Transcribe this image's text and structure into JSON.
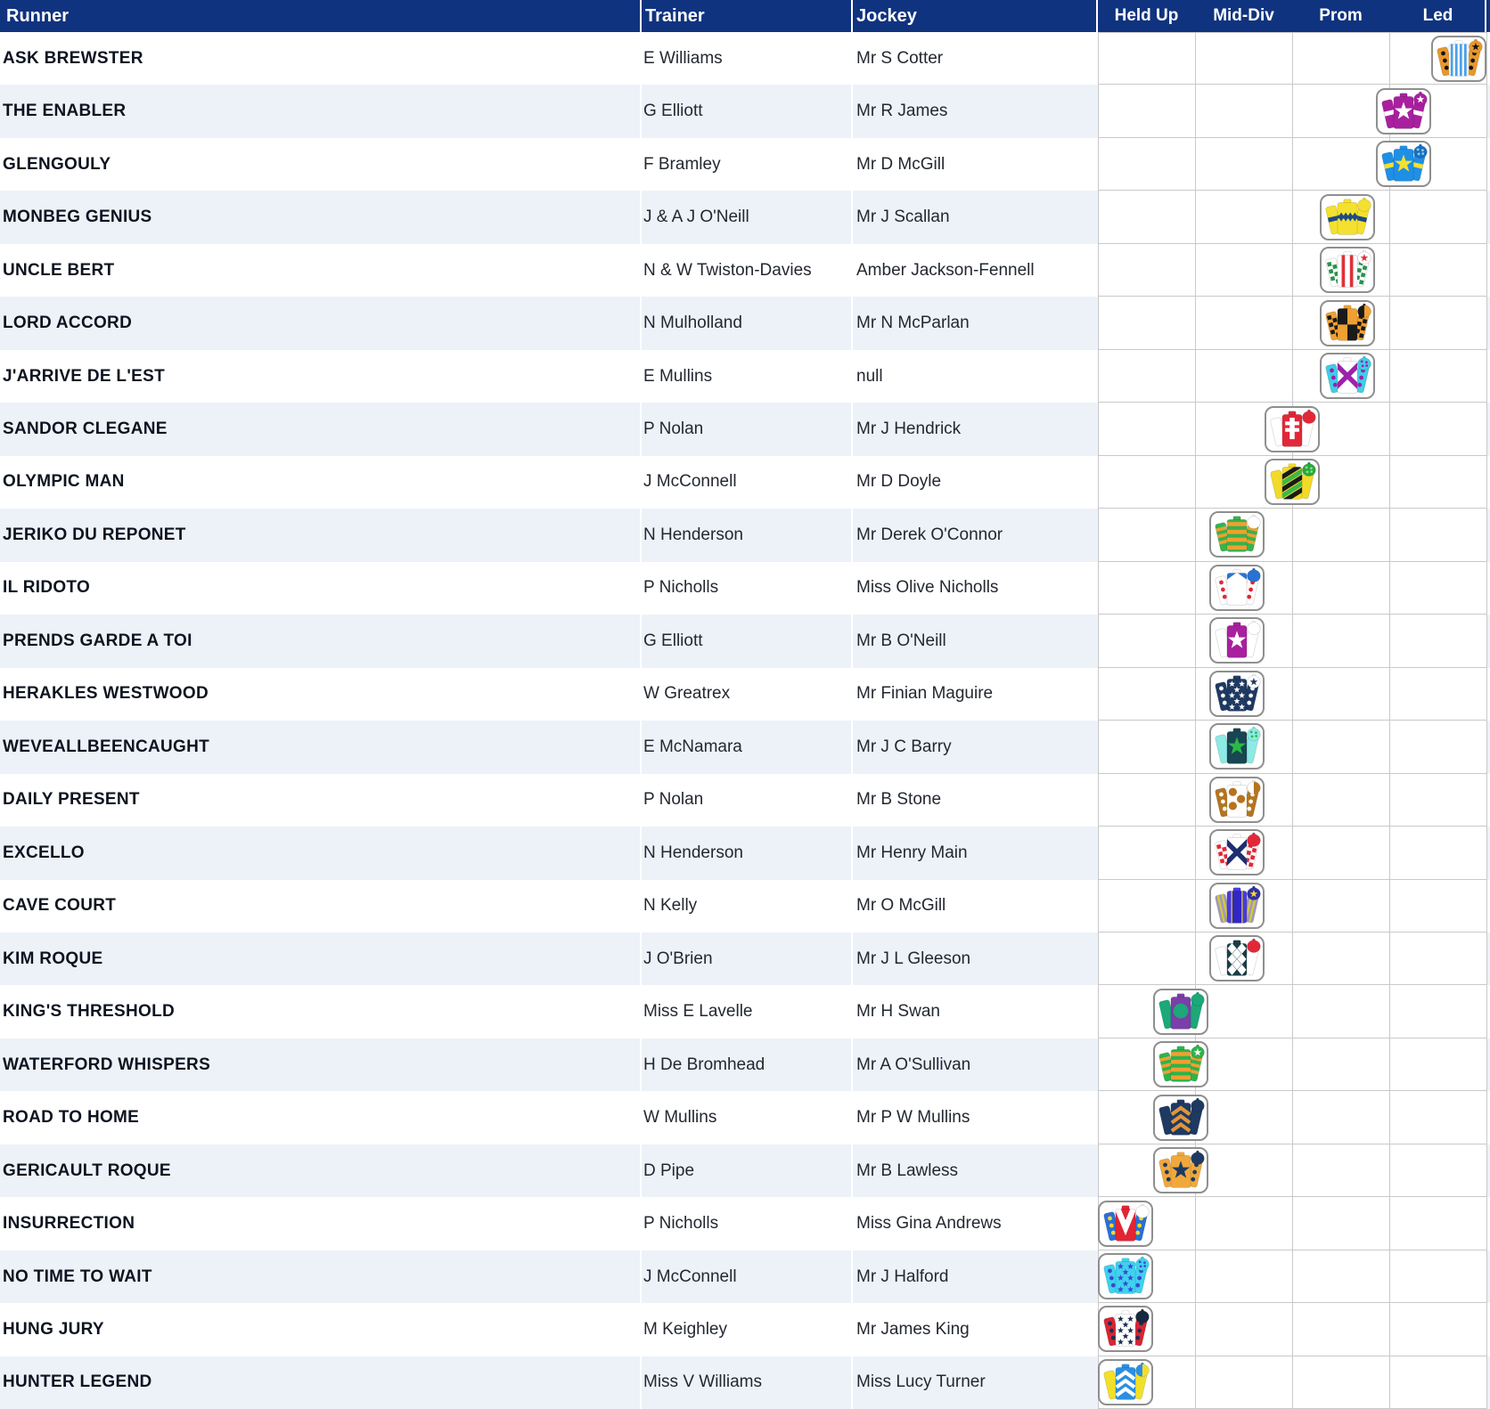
{
  "colors": {
    "header_bg": "#10337f",
    "header_text": "#ffffff",
    "row_stripe": "#edf2f9",
    "row_plain": "#ffffff",
    "grid_line": "#c9c9c9",
    "runner_text": "#0d1420",
    "cell_text": "#232830",
    "silk_box_border": "#8f8f8f"
  },
  "table": {
    "columns": {
      "runner": "Runner",
      "trainer": "Trainer",
      "jockey": "Jockey"
    },
    "run_style_columns": [
      "Held Up",
      "Mid-Div",
      "Prom",
      "Led"
    ],
    "run_style_scale_points": 7,
    "rows": [
      {
        "runner": "ASK BREWSTER",
        "trainer": "E Williams",
        "jockey": "Mr S Cotter",
        "run_style": 7,
        "silk": {
          "body": {
            "color": "#ffffff",
            "pattern": "stripes",
            "pattern_color": "#4ba1e8"
          },
          "sleeves": {
            "color": "#e8982a",
            "pattern": "spots",
            "pattern_color": "#141414"
          },
          "cap": {
            "color": "#e8982a",
            "pattern": "star",
            "pattern_color": "#141414"
          }
        }
      },
      {
        "runner": "THE ENABLER",
        "trainer": "G Elliott",
        "jockey": "Mr R James",
        "run_style": 6,
        "silk": {
          "body": {
            "color": "#a8209e",
            "pattern": "star",
            "pattern_color": "#ffffff"
          },
          "sleeves": {
            "color": "#a8209e",
            "pattern": "armband",
            "pattern_color": "#ffffff"
          },
          "cap": {
            "color": "#a8209e",
            "pattern": "star",
            "pattern_color": "#ffffff"
          }
        }
      },
      {
        "runner": "GLENGOULY",
        "trainer": "F Bramley",
        "jockey": "Mr D McGill",
        "run_style": 6,
        "silk": {
          "body": {
            "color": "#1f8fe6",
            "pattern": "star",
            "pattern_color": "#f4e02e"
          },
          "sleeves": {
            "color": "#1f8fe6",
            "pattern": "armband",
            "pattern_color": "#f4e02e"
          },
          "cap": {
            "color": "#1a6fc0",
            "pattern": "spots",
            "pattern_color": "#8fd4f0"
          }
        }
      },
      {
        "runner": "MONBEG GENIUS",
        "trainer": "J & A J O'Neill",
        "jockey": "Mr J Scallan",
        "run_style": 5,
        "silk": {
          "body": {
            "color": "#f4e02e",
            "pattern": "band",
            "pattern_color": "#1d4a85"
          },
          "sleeves": {
            "color": "#f4e02e",
            "pattern": "armband",
            "pattern_color": "#1d4a85"
          },
          "cap": {
            "color": "#f4e02e",
            "pattern": "solid",
            "pattern_color": "#f4e02e"
          }
        }
      },
      {
        "runner": "UNCLE BERT",
        "trainer": "N & W Twiston-Davies",
        "jockey": "Amber Jackson-Fennell",
        "run_style": 5,
        "silk": {
          "body": {
            "color": "#ffffff",
            "pattern": "stripes2",
            "pattern_color": "#e03038"
          },
          "sleeves": {
            "color": "#ffffff",
            "pattern": "check",
            "pattern_color": "#2a9150"
          },
          "cap": {
            "color": "#ffffff",
            "pattern": "star",
            "pattern_color": "#e03038"
          }
        }
      },
      {
        "runner": "LORD ACCORD",
        "trainer": "N Mulholland",
        "jockey": "Mr N McParlan",
        "run_style": 5,
        "silk": {
          "body": {
            "color": "#f0a032",
            "pattern": "quarters",
            "pattern_color": "#1a1a1a"
          },
          "sleeves": {
            "color": "#f0a032",
            "pattern": "check",
            "pattern_color": "#1a1a1a"
          },
          "cap": {
            "color": "#1a1a1a",
            "pattern": "quarters",
            "pattern_color": "#f0a032"
          }
        }
      },
      {
        "runner": "J'ARRIVE DE L'EST",
        "trainer": "E Mullins",
        "jockey": "null",
        "run_style": 5,
        "silk": {
          "body": {
            "color": "#ffffff",
            "pattern": "saltire",
            "pattern_color": "#9b22aa"
          },
          "sleeves": {
            "color": "#3fcde8",
            "pattern": "spots",
            "pattern_color": "#9b22aa"
          },
          "cap": {
            "color": "#3fcde8",
            "pattern": "spots",
            "pattern_color": "#9b22aa"
          }
        }
      },
      {
        "runner": "SANDOR CLEGANE",
        "trainer": "P Nolan",
        "jockey": "Mr J Hendrick",
        "run_style": 4,
        "silk": {
          "body": {
            "color": "#e22838",
            "pattern": "cross",
            "pattern_color": "#ffffff"
          },
          "sleeves": {
            "color": "#ffffff",
            "pattern": "solid",
            "pattern_color": "#ffffff"
          },
          "cap": {
            "color": "#e22838",
            "pattern": "solid",
            "pattern_color": "#e22838"
          }
        }
      },
      {
        "runner": "OLYMPIC MAN",
        "trainer": "J McConnell",
        "jockey": "Mr D Doyle",
        "run_style": 4,
        "silk": {
          "body": {
            "color": "#f2da28",
            "pattern": "diag",
            "pattern_color": "#1a1a1a",
            "pattern_color2": "#3cb845"
          },
          "sleeves": {
            "color": "#f2da28",
            "pattern": "solid",
            "pattern_color": "#f2da28"
          },
          "cap": {
            "color": "#2aa83a",
            "pattern": "spots",
            "pattern_color": "#86e090"
          }
        }
      },
      {
        "runner": "JERIKO DU REPONET",
        "trainer": "N Henderson",
        "jockey": "Mr Derek O'Connor",
        "run_style": 3,
        "silk": {
          "body": {
            "color": "#35b34c",
            "pattern": "hoops",
            "pattern_color": "#f0a030"
          },
          "sleeves": {
            "color": "#35b34c",
            "pattern": "hoops",
            "pattern_color": "#f0a030"
          },
          "cap": {
            "color": "#ffffff",
            "pattern": "solid",
            "pattern_color": "#ffffff"
          }
        }
      },
      {
        "runner": "IL RIDOTO",
        "trainer": "P Nicholls",
        "jockey": "Miss Olive Nicholls",
        "run_style": 3,
        "silk": {
          "body": {
            "color": "#ffffff",
            "pattern": "epaulets",
            "pattern_color": "#2a72d2"
          },
          "sleeves": {
            "color": "#ffffff",
            "pattern": "spots",
            "pattern_color": "#e22838"
          },
          "cap": {
            "color": "#2a72d2",
            "pattern": "solid",
            "pattern_color": "#2a72d2"
          }
        }
      },
      {
        "runner": "PRENDS GARDE A TOI",
        "trainer": "G Elliott",
        "jockey": "Mr B O'Neill",
        "run_style": 3,
        "silk": {
          "body": {
            "color": "#a8209e",
            "pattern": "star",
            "pattern_color": "#ffffff"
          },
          "sleeves": {
            "color": "#ffffff",
            "pattern": "solid",
            "pattern_color": "#ffffff"
          },
          "cap": {
            "color": "#ffffff",
            "pattern": "solid",
            "pattern_color": "#ffffff"
          }
        }
      },
      {
        "runner": "HERAKLES WESTWOOD",
        "trainer": "W Greatrex",
        "jockey": "Mr Finian Maguire",
        "run_style": 3,
        "silk": {
          "body": {
            "color": "#1e3a62",
            "pattern": "stars",
            "pattern_color": "#ffffff"
          },
          "sleeves": {
            "color": "#1e3a62",
            "pattern": "spots",
            "pattern_color": "#ffffff"
          },
          "cap": {
            "color": "#ffffff",
            "pattern": "star",
            "pattern_color": "#1e3a62"
          }
        }
      },
      {
        "runner": "WEVEALLBEENCAUGHT",
        "trainer": "E McNamara",
        "jockey": "Mr J C Barry",
        "run_style": 3,
        "silk": {
          "body": {
            "color": "#184652",
            "pattern": "star",
            "pattern_color": "#2cb848"
          },
          "sleeves": {
            "color": "#8deae4",
            "pattern": "solid",
            "pattern_color": "#8deae4"
          },
          "cap": {
            "color": "#8deae4",
            "pattern": "spots",
            "pattern_color": "#2cb848"
          }
        }
      },
      {
        "runner": "DAILY PRESENT",
        "trainer": "P Nolan",
        "jockey": "Mr B Stone",
        "run_style": 3,
        "silk": {
          "body": {
            "color": "#ffffff",
            "pattern": "spots",
            "pattern_color": "#b4751f"
          },
          "sleeves": {
            "color": "#b4751f",
            "pattern": "spots",
            "pattern_color": "#ffffff"
          },
          "cap": {
            "color": "#ffffff",
            "pattern": "quarters",
            "pattern_color": "#b4751f"
          }
        }
      },
      {
        "runner": "EXCELLO",
        "trainer": "N Henderson",
        "jockey": "Mr Henry Main",
        "run_style": 3,
        "silk": {
          "body": {
            "color": "#ffffff",
            "pattern": "saltire",
            "pattern_color": "#1c2f70"
          },
          "sleeves": {
            "color": "#ffffff",
            "pattern": "check",
            "pattern_color": "#e22838"
          },
          "cap": {
            "color": "#e22838",
            "pattern": "solid",
            "pattern_color": "#e22838"
          }
        }
      },
      {
        "runner": "CAVE COURT",
        "trainer": "N Kelly",
        "jockey": "Mr O McGill",
        "run_style": 3,
        "silk": {
          "body": {
            "color": "#4a3ae0",
            "pattern": "panel",
            "pattern_color": "#3226c2",
            "pattern_color2": "#d8cc32"
          },
          "sleeves": {
            "color": "#a29ab8",
            "pattern": "stripes",
            "pattern_color": "#d8cc32"
          },
          "cap": {
            "color": "#2f2fa8",
            "pattern": "star",
            "pattern_color": "#f2da28"
          }
        }
      },
      {
        "runner": "KIM ROQUE",
        "trainer": "J O'Brien",
        "jockey": "Mr J L Gleeson",
        "run_style": 3,
        "silk": {
          "body": {
            "color": "#1b3f46",
            "pattern": "diamonds",
            "pattern_color": "#ffffff"
          },
          "sleeves": {
            "color": "#ffffff",
            "pattern": "solid",
            "pattern_color": "#ffffff"
          },
          "cap": {
            "color": "#e22838",
            "pattern": "solid",
            "pattern_color": "#e22838"
          }
        }
      },
      {
        "runner": "KING'S THRESHOLD",
        "trainer": "Miss E Lavelle",
        "jockey": "Mr H Swan",
        "run_style": 2,
        "silk": {
          "body": {
            "color": "#7a3fa8",
            "pattern": "disc",
            "pattern_color": "#1ca878"
          },
          "sleeves": {
            "color": "#1ca878",
            "pattern": "solid",
            "pattern_color": "#1ca878"
          },
          "cap": {
            "color": "#1ca878",
            "pattern": "solid",
            "pattern_color": "#1ca878"
          }
        }
      },
      {
        "runner": "WATERFORD WHISPERS",
        "trainer": "H De Bromhead",
        "jockey": "Mr A O'Sullivan",
        "run_style": 2,
        "silk": {
          "body": {
            "color": "#2db34c",
            "pattern": "hoops",
            "pattern_color": "#f0a030"
          },
          "sleeves": {
            "color": "#2db34c",
            "pattern": "hoops",
            "pattern_color": "#f0a030"
          },
          "cap": {
            "color": "#2db34c",
            "pattern": "star",
            "pattern_color": "#ffffff"
          }
        }
      },
      {
        "runner": "ROAD TO HOME",
        "trainer": "W Mullins",
        "jockey": "Mr P W Mullins",
        "run_style": 2,
        "silk": {
          "body": {
            "color": "#1e3a62",
            "pattern": "chevrons",
            "pattern_color": "#e0953a"
          },
          "sleeves": {
            "color": "#1e3a62",
            "pattern": "solid",
            "pattern_color": "#1e3a62"
          },
          "cap": {
            "color": "#1e3a62",
            "pattern": "solid",
            "pattern_color": "#1e3a62"
          }
        }
      },
      {
        "runner": "GERICAULT ROQUE",
        "trainer": "D Pipe",
        "jockey": "Mr B Lawless",
        "run_style": 2,
        "silk": {
          "body": {
            "color": "#f0a83c",
            "pattern": "star",
            "pattern_color": "#1e3a62"
          },
          "sleeves": {
            "color": "#f0a83c",
            "pattern": "spots",
            "pattern_color": "#1e3a62"
          },
          "cap": {
            "color": "#1e3a62",
            "pattern": "solid",
            "pattern_color": "#1e3a62"
          }
        }
      },
      {
        "runner": "INSURRECTION",
        "trainer": "P Nicholls",
        "jockey": "Miss Gina Andrews",
        "run_style": 1,
        "silk": {
          "body": {
            "color": "#e22535",
            "pattern": "chevronV",
            "pattern_color": "#ffffff"
          },
          "sleeves": {
            "color": "#2a6fd6",
            "pattern": "spots",
            "pattern_color": "#f2da28"
          },
          "cap": {
            "color": "#ffffff",
            "pattern": "solid",
            "pattern_color": "#ffffff"
          }
        }
      },
      {
        "runner": "NO TIME TO WAIT",
        "trainer": "J McConnell",
        "jockey": "Mr J Halford",
        "run_style": 1,
        "silk": {
          "body": {
            "color": "#3ed2ee",
            "pattern": "stars",
            "pattern_color": "#3a48d2"
          },
          "sleeves": {
            "color": "#3ed2ee",
            "pattern": "spots",
            "pattern_color": "#3a48d2"
          },
          "cap": {
            "color": "#3ed2ee",
            "pattern": "spots",
            "pattern_color": "#3a48d2"
          }
        }
      },
      {
        "runner": "HUNG JURY",
        "trainer": "M Keighley",
        "jockey": "Mr James King",
        "run_style": 1,
        "silk": {
          "body": {
            "color": "#ffffff",
            "pattern": "stars",
            "pattern_color": "#1d3050"
          },
          "sleeves": {
            "color": "#d82535",
            "pattern": "spots",
            "pattern_color": "#1d3050"
          },
          "cap": {
            "color": "#16293f",
            "pattern": "solid",
            "pattern_color": "#16293f"
          }
        }
      },
      {
        "runner": "HUNTER LEGEND",
        "trainer": "Miss V Williams",
        "jockey": "Miss Lucy Turner",
        "run_style": 1,
        "silk": {
          "body": {
            "color": "#2a8fe2",
            "pattern": "chevrons",
            "pattern_color": "#ffffff"
          },
          "sleeves": {
            "color": "#f2e028",
            "pattern": "solid",
            "pattern_color": "#f2e028"
          },
          "cap": {
            "color": "#2a8fe2",
            "pattern": "quarters",
            "pattern_color": "#f2e028"
          }
        }
      }
    ]
  }
}
